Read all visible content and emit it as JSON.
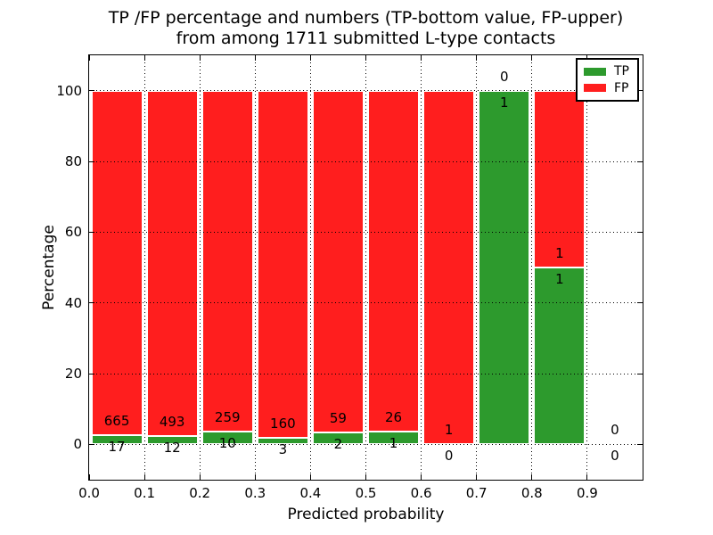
{
  "figure": {
    "title_line1": "TP /FP percentage and numbers (TP-bottom value, FP-upper)",
    "title_line2": "from among 1711 submitted L-type contacts",
    "xlabel": "Predicted probability",
    "ylabel": "Percentage"
  },
  "colors": {
    "tp_green": "#2d9a2d",
    "fp_red": "#ff1e1e",
    "background": "#ffffff",
    "text": "#000000"
  },
  "legend": {
    "position": "upper right",
    "items": [
      {
        "label": "TP",
        "color": "#2d9a2d"
      },
      {
        "label": "FP",
        "color": "#ff1e1e"
      }
    ]
  },
  "chart_data": {
    "type": "bar",
    "subtype": "stacked-percentage-histogram",
    "title": "TP /FP percentage and numbers (TP-bottom value, FP-upper) from among 1711 submitted L-type contacts",
    "xlabel": "Predicted probability",
    "ylabel": "Percentage",
    "xlim": [
      0,
      1.0
    ],
    "ylim": [
      -10,
      110
    ],
    "xtick_labels": [
      "0.0",
      "0.1",
      "0.2",
      "0.3",
      "0.4",
      "0.5",
      "0.6",
      "0.7",
      "0.8",
      "0.9"
    ],
    "ytick_values": [
      0,
      20,
      40,
      60,
      80,
      100
    ],
    "grid": "dotted black, drawn above bars",
    "legend_entries": [
      "TP",
      "FP"
    ],
    "total_contacts": 1711,
    "series": [
      {
        "name": "TP",
        "color": "#2d9a2d",
        "counts": [
          17,
          12,
          10,
          3,
          2,
          1,
          0,
          1,
          1,
          0
        ]
      },
      {
        "name": "FP",
        "color": "#ff1e1e",
        "counts": [
          665,
          493,
          259,
          160,
          59,
          26,
          1,
          0,
          1,
          0
        ]
      }
    ],
    "bins": [
      {
        "range": [
          0.0,
          0.1
        ],
        "tp": 17,
        "fp": 665
      },
      {
        "range": [
          0.1,
          0.2
        ],
        "tp": 12,
        "fp": 493
      },
      {
        "range": [
          0.2,
          0.3
        ],
        "tp": 10,
        "fp": 259
      },
      {
        "range": [
          0.3,
          0.4
        ],
        "tp": 3,
        "fp": 160
      },
      {
        "range": [
          0.4,
          0.5
        ],
        "tp": 2,
        "fp": 59
      },
      {
        "range": [
          0.5,
          0.6
        ],
        "tp": 1,
        "fp": 26
      },
      {
        "range": [
          0.6,
          0.7
        ],
        "tp": 0,
        "fp": 1
      },
      {
        "range": [
          0.7,
          0.8
        ],
        "tp": 1,
        "fp": 0
      },
      {
        "range": [
          0.8,
          0.9
        ],
        "tp": 1,
        "fp": 1
      },
      {
        "range": [
          0.9,
          1.0
        ],
        "tp": 0,
        "fp": 0
      }
    ],
    "tp_percent_of_bin": [
      2.49,
      2.38,
      3.72,
      1.84,
      3.28,
      3.7,
      0.0,
      100.0,
      50.0,
      null
    ]
  }
}
